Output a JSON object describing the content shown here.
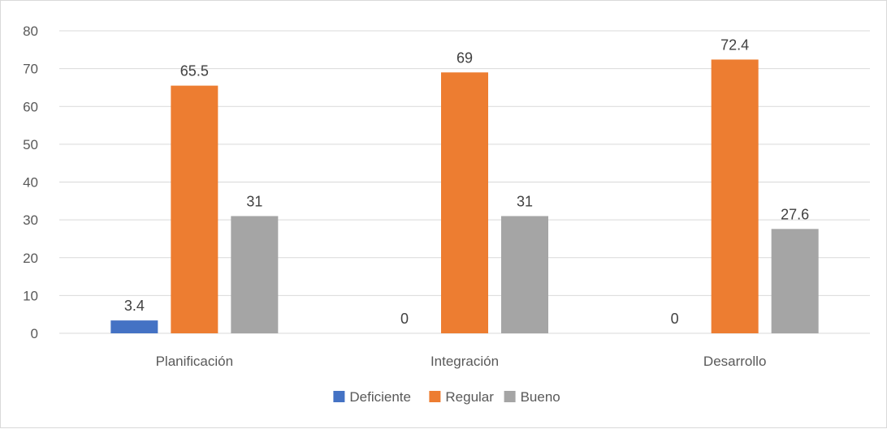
{
  "chart_data": {
    "type": "bar",
    "title": "",
    "xlabel": "",
    "ylabel": "",
    "categories": [
      "Planificación",
      "Integración",
      "Desarrollo"
    ],
    "series": [
      {
        "name": "Deficiente",
        "values": [
          3.4,
          0,
          0
        ],
        "color": "#4472c4"
      },
      {
        "name": "Regular",
        "values": [
          65.5,
          69,
          72.4
        ],
        "color": "#ed7d31"
      },
      {
        "name": "Bueno",
        "values": [
          31,
          31,
          27.6
        ],
        "color": "#a5a5a5"
      }
    ],
    "ylim": [
      0,
      80
    ],
    "yticks": [
      0,
      10,
      20,
      30,
      40,
      50,
      60,
      70,
      80
    ],
    "grid": true,
    "gridColor": "#d9d9d9",
    "data_labels": true,
    "legend": {
      "position": "bottom"
    }
  }
}
